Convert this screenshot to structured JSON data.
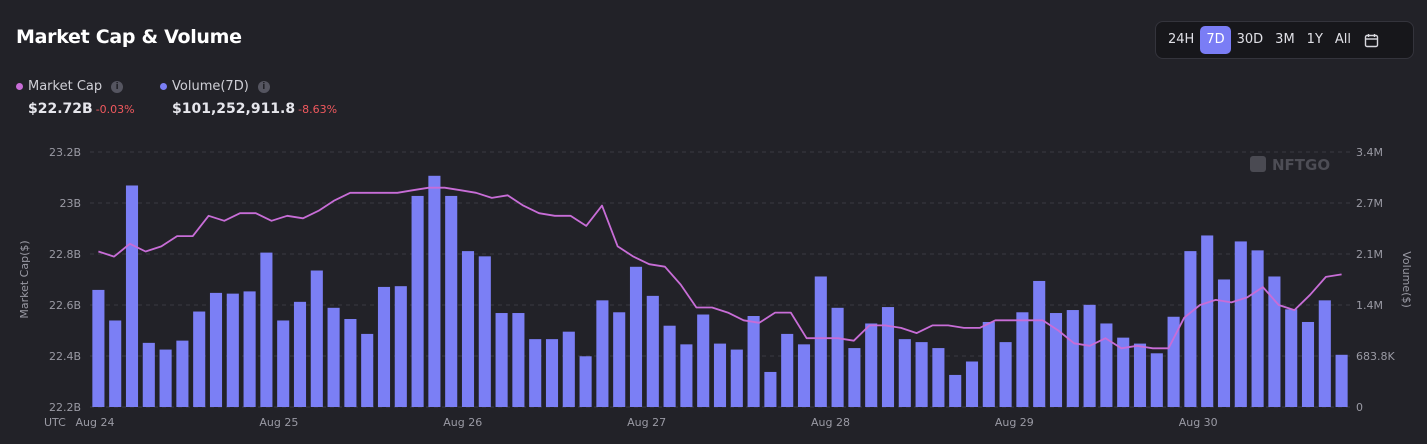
{
  "header": {
    "title": "Market Cap & Volume"
  },
  "range_selector": {
    "options": [
      "24H",
      "7D",
      "30D",
      "3M",
      "1Y",
      "All"
    ],
    "selected": "7D",
    "calendar_icon": "calendar-icon"
  },
  "legend": {
    "market_cap": {
      "label": "Market Cap",
      "value": "$22.72B",
      "change": "-0.03%",
      "color": "#c86dd7"
    },
    "volume": {
      "label": "Volume(7D)",
      "value": "$101,252,911.8",
      "change": "-8.63%",
      "color": "#7b7ff5"
    },
    "info_icon": "info-icon"
  },
  "watermark": "NFTGO",
  "chart_data": {
    "type": "bar+line",
    "title": "Market Cap & Volume",
    "timezone_label": "UTC",
    "x_tick_labels": [
      "Aug 24",
      "Aug 25",
      "Aug 26",
      "Aug 27",
      "Aug 28",
      "Aug 29",
      "Aug 30"
    ],
    "left_axis": {
      "label": "Market Cap($)",
      "tick_labels": [
        "22.2B",
        "22.4B",
        "22.6B",
        "22.8B",
        "23B",
        "23.2B"
      ],
      "range": [
        22.2,
        23.2
      ],
      "unit": "B"
    },
    "right_axis": {
      "label": "Volume($)",
      "tick_labels": [
        "0",
        "683.8K",
        "1.4M",
        "2.1M",
        "2.7M",
        "3.4M"
      ],
      "range": [
        0,
        3.419
      ],
      "unit": "M"
    },
    "series": [
      {
        "name": "Volume(7D)",
        "type": "bar",
        "axis": "right",
        "color": "#7b7ff5",
        "values": [
          1.57,
          1.16,
          2.97,
          0.86,
          0.77,
          0.89,
          1.28,
          1.53,
          1.52,
          1.55,
          2.07,
          1.16,
          1.41,
          1.83,
          1.33,
          1.18,
          0.98,
          1.61,
          1.62,
          2.83,
          3.1,
          2.83,
          2.09,
          2.02,
          1.26,
          1.26,
          0.91,
          0.91,
          1.01,
          0.68,
          1.43,
          1.27,
          1.88,
          1.49,
          1.09,
          0.84,
          1.24,
          0.85,
          0.77,
          1.22,
          0.47,
          0.98,
          0.84,
          1.75,
          1.33,
          0.79,
          1.12,
          1.34,
          0.91,
          0.87,
          0.79,
          0.43,
          0.61,
          1.14,
          0.87,
          1.27,
          1.69,
          1.26,
          1.3,
          1.37,
          1.12,
          0.93,
          0.85,
          0.72,
          1.21,
          2.09,
          2.3,
          1.71,
          2.22,
          2.1,
          1.75,
          1.31,
          1.14,
          1.43,
          0.7
        ]
      },
      {
        "name": "Market Cap",
        "type": "line",
        "axis": "left",
        "color": "#c86dd7",
        "values": [
          22.81,
          22.79,
          22.84,
          22.81,
          22.83,
          22.87,
          22.87,
          22.95,
          22.93,
          22.96,
          22.96,
          22.93,
          22.95,
          22.94,
          22.97,
          23.01,
          23.04,
          23.04,
          23.04,
          23.04,
          23.05,
          23.06,
          23.06,
          23.05,
          23.04,
          23.02,
          23.03,
          22.99,
          22.96,
          22.95,
          22.95,
          22.91,
          22.99,
          22.83,
          22.79,
          22.76,
          22.75,
          22.68,
          22.59,
          22.59,
          22.57,
          22.54,
          22.53,
          22.57,
          22.57,
          22.47,
          22.47,
          22.47,
          22.46,
          22.52,
          22.52,
          22.51,
          22.49,
          22.52,
          22.52,
          22.51,
          22.51,
          22.54,
          22.54,
          22.54,
          22.54,
          22.5,
          22.45,
          22.44,
          22.47,
          22.43,
          22.44,
          22.43,
          22.43,
          22.55,
          22.6,
          22.62,
          22.61,
          22.63,
          22.67,
          22.6,
          22.58,
          22.64,
          22.71,
          22.72
        ]
      }
    ]
  }
}
